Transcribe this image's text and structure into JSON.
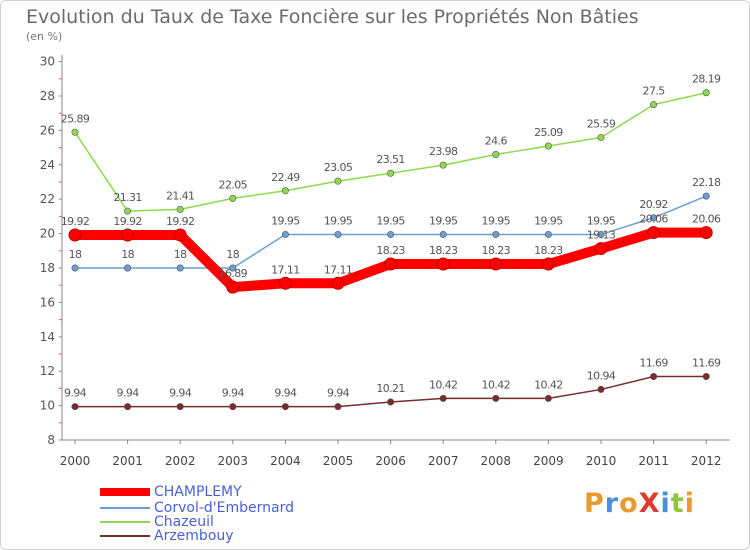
{
  "title": "Evolution du Taux de Taxe Foncière sur les Propriétés Non Bâties",
  "unit_label": "(en %)",
  "logo_text": "ProXiti",
  "chart_data": {
    "type": "line",
    "x": [
      "2000",
      "2001",
      "2002",
      "2003",
      "2004",
      "2005",
      "2006",
      "2007",
      "2008",
      "2009",
      "2010",
      "2011",
      "2012"
    ],
    "ylim": [
      8,
      30
    ],
    "yticks": [
      8,
      10,
      12,
      14,
      16,
      18,
      20,
      22,
      24,
      26,
      28,
      30
    ],
    "grid": false,
    "legend_position": "bottom-left",
    "series": [
      {
        "name": "CHAMPLEMY",
        "color": "#ff0000",
        "values": [
          19.92,
          19.92,
          19.92,
          16.89,
          17.11,
          17.11,
          18.23,
          18.23,
          18.23,
          18.23,
          19.13,
          20.06,
          20.06
        ],
        "labels": [
          "19.92",
          "19.92",
          "19.92",
          "16.89",
          "17.11",
          "17.11",
          "18.23",
          "18.23",
          "18.23",
          "18.23",
          "19.13",
          "20.06",
          "20.06"
        ]
      },
      {
        "name": "Corvol-d'Embernard",
        "color": "#6a9fd4",
        "values": [
          18,
          18,
          18,
          18,
          19.95,
          19.95,
          19.95,
          19.95,
          19.95,
          19.95,
          19.95,
          20.92,
          22.18
        ],
        "labels": [
          "18",
          "18",
          "18",
          "18",
          "19.95",
          "19.95",
          "19.95",
          "19.95",
          "19.95",
          "19.95",
          "19.95",
          "20.92",
          "22.18"
        ]
      },
      {
        "name": "Chazeuil",
        "color": "#8ed94f",
        "values": [
          25.89,
          21.31,
          21.41,
          22.05,
          22.49,
          23.05,
          23.51,
          23.98,
          24.6,
          25.09,
          25.59,
          27.5,
          28.19
        ],
        "labels": [
          "25.89",
          "21.31",
          "21.41",
          "22.05",
          "22.49",
          "23.05",
          "23.51",
          "23.98",
          "24.6",
          "25.09",
          "25.59",
          "27.5",
          "28.19"
        ]
      },
      {
        "name": "Arzembouy",
        "color": "#7a2b2b",
        "values": [
          9.94,
          9.94,
          9.94,
          9.94,
          9.94,
          9.94,
          10.21,
          10.42,
          10.42,
          10.42,
          10.94,
          11.69,
          11.69
        ],
        "labels": [
          "9.94",
          "9.94",
          "9.94",
          "9.94",
          "9.94",
          "9.94",
          "10.21",
          "10.42",
          "10.42",
          "10.42",
          "10.94",
          "11.69",
          "11.69"
        ]
      }
    ]
  }
}
